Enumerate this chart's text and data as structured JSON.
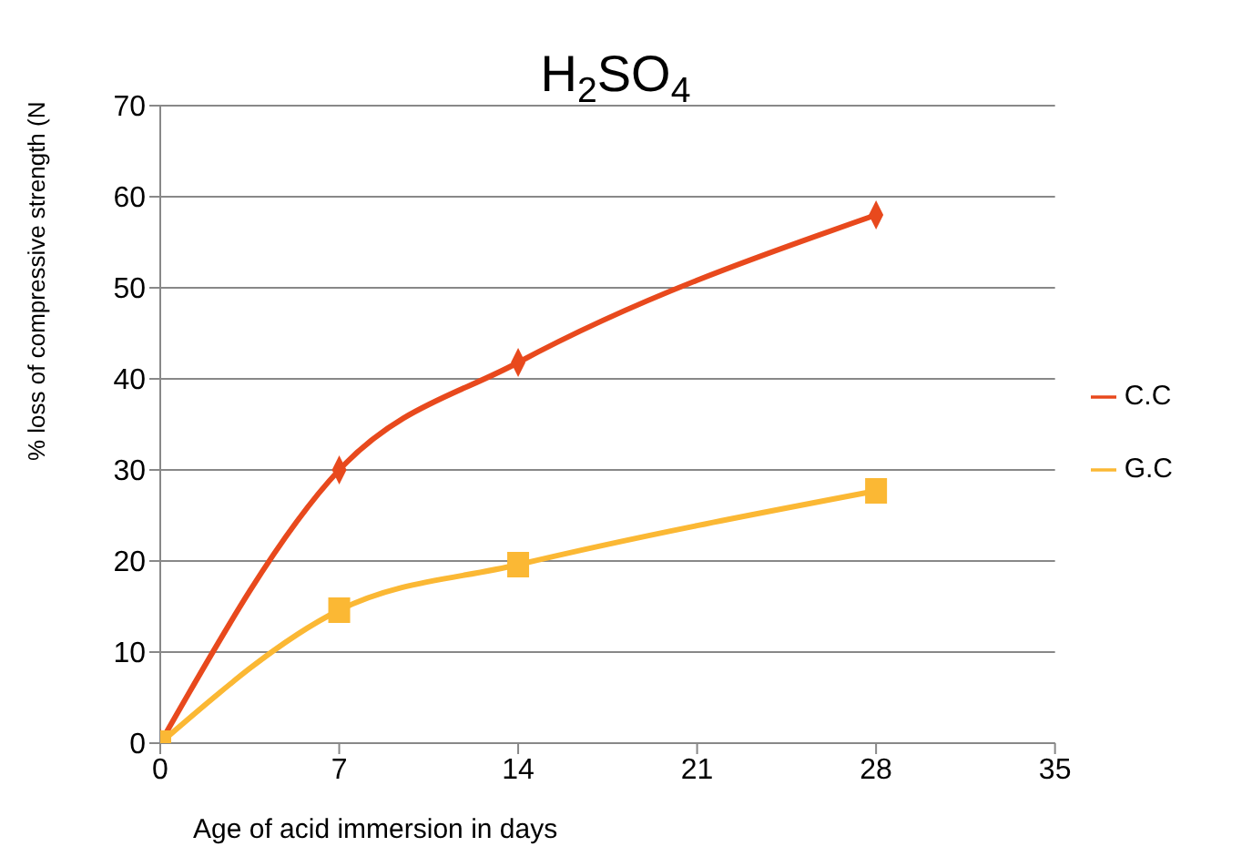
{
  "chart_data": {
    "type": "line",
    "title": "H$_{2}$SO$_{4}$",
    "xlabel": "Age of acid immersion in days",
    "ylabel": "% loss of compressive strength  (N",
    "x": [
      0,
      7,
      14,
      28
    ],
    "series": [
      {
        "name": "C.C",
        "color": "#e8491d",
        "values": [
          0,
          30,
          41.8,
          58
        ],
        "marker": "diamond"
      },
      {
        "name": "G.C",
        "color": "#fbb834",
        "values": [
          0,
          14.6,
          19.6,
          27.7
        ],
        "marker": "square"
      }
    ],
    "xlim": [
      0,
      35
    ],
    "xticks": [
      0,
      7,
      14,
      21,
      28,
      35
    ],
    "ylim": [
      0,
      70
    ],
    "yticks": [
      0,
      10,
      20,
      30,
      40,
      50,
      60,
      70
    ],
    "grid": "y",
    "legend": "right"
  }
}
